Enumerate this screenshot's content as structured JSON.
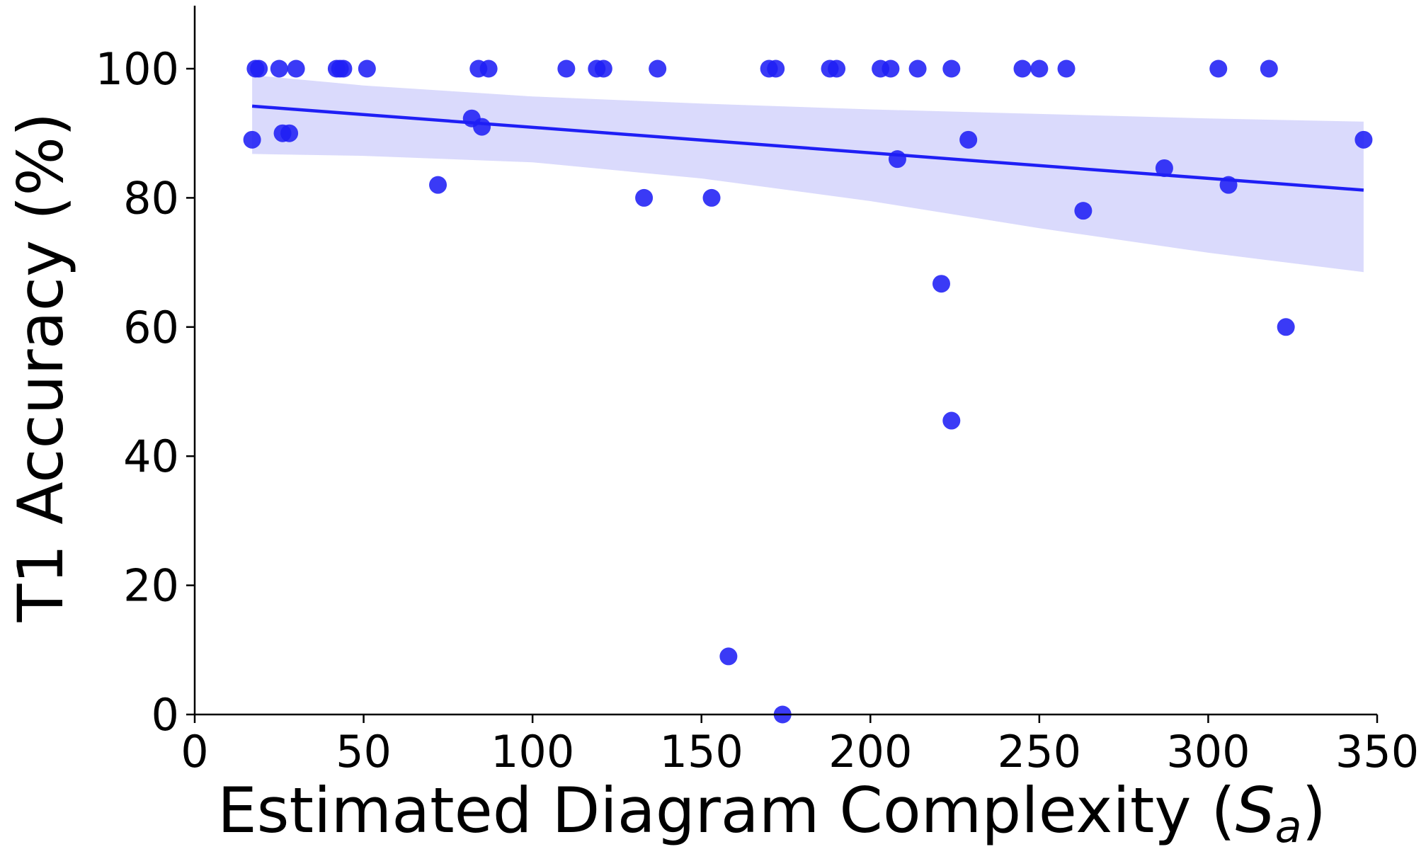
{
  "chart_data": {
    "type": "scatter",
    "title": "",
    "xlabel": "Estimated Diagram Complexity (",
    "xlabel_symbol": "S",
    "xlabel_subscript": "a",
    "xlabel_close": ")",
    "ylabel": "T1 Accuracy (%)",
    "xlim": [
      0,
      350
    ],
    "ylim": [
      -1,
      110
    ],
    "xticks": [
      0,
      50,
      100,
      150,
      200,
      250,
      300,
      350
    ],
    "yticks": [
      0,
      20,
      40,
      60,
      80,
      100
    ],
    "grid": false,
    "colors": {
      "points": "#1f1ff5",
      "fit": "#1f1ff5",
      "band": "#3b3bf0"
    },
    "points": [
      {
        "x": 17,
        "y": 89
      },
      {
        "x": 18,
        "y": 100
      },
      {
        "x": 19,
        "y": 100
      },
      {
        "x": 25,
        "y": 100
      },
      {
        "x": 26,
        "y": 90
      },
      {
        "x": 28,
        "y": 90
      },
      {
        "x": 30,
        "y": 100
      },
      {
        "x": 42,
        "y": 100
      },
      {
        "x": 43,
        "y": 100
      },
      {
        "x": 44,
        "y": 100
      },
      {
        "x": 51,
        "y": 100
      },
      {
        "x": 72,
        "y": 82
      },
      {
        "x": 82,
        "y": 92.3
      },
      {
        "x": 84,
        "y": 100
      },
      {
        "x": 85,
        "y": 91
      },
      {
        "x": 87,
        "y": 100
      },
      {
        "x": 110,
        "y": 100
      },
      {
        "x": 119,
        "y": 100
      },
      {
        "x": 121,
        "y": 100
      },
      {
        "x": 133,
        "y": 80
      },
      {
        "x": 137,
        "y": 100
      },
      {
        "x": 153,
        "y": 80
      },
      {
        "x": 158,
        "y": 9
      },
      {
        "x": 170,
        "y": 100
      },
      {
        "x": 172,
        "y": 100
      },
      {
        "x": 174,
        "y": 0
      },
      {
        "x": 188,
        "y": 100
      },
      {
        "x": 190,
        "y": 100
      },
      {
        "x": 203,
        "y": 100
      },
      {
        "x": 206,
        "y": 100
      },
      {
        "x": 208,
        "y": 86
      },
      {
        "x": 214,
        "y": 100
      },
      {
        "x": 221,
        "y": 66.7
      },
      {
        "x": 224,
        "y": 100
      },
      {
        "x": 224,
        "y": 45.5
      },
      {
        "x": 229,
        "y": 89
      },
      {
        "x": 245,
        "y": 100
      },
      {
        "x": 250,
        "y": 100
      },
      {
        "x": 258,
        "y": 100
      },
      {
        "x": 263,
        "y": 78
      },
      {
        "x": 287,
        "y": 84.6
      },
      {
        "x": 303,
        "y": 100
      },
      {
        "x": 306,
        "y": 82
      },
      {
        "x": 318,
        "y": 100
      },
      {
        "x": 323,
        "y": 60
      },
      {
        "x": 346,
        "y": 89
      }
    ],
    "regression": {
      "x": [
        17,
        346
      ],
      "y": [
        94.2,
        81.2
      ]
    },
    "confidence_band": {
      "x": [
        17,
        50,
        100,
        150,
        200,
        250,
        300,
        346
      ],
      "upper": [
        99,
        97.4,
        95.7,
        94.6,
        93.7,
        93.0,
        92.3,
        91.8
      ],
      "lower": [
        86.8,
        86.5,
        85.5,
        83.0,
        79.5,
        75.3,
        71.5,
        68.5
      ]
    }
  }
}
